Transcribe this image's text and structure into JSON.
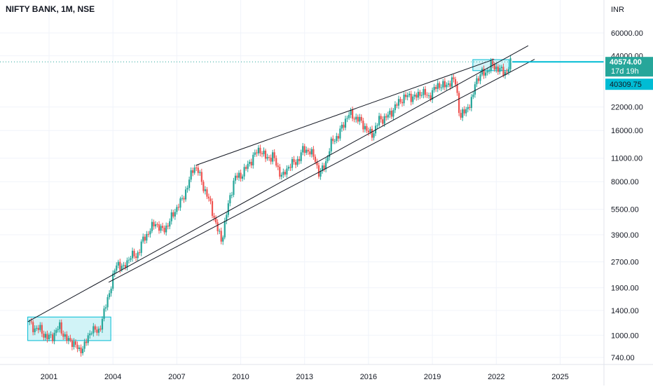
{
  "header": {
    "symbol_title": "NIFTY BANK, 1M, NSE",
    "currency": "INR"
  },
  "price_tags": {
    "last_price": "40574.00",
    "countdown": "17d 19h",
    "reference_price": "40309.75"
  },
  "colors": {
    "up_candle": "#26a69a",
    "down_candle": "#ef5350",
    "accent": "#00bcd4",
    "box_fill": "#b2ebf2",
    "trendline": "#131722",
    "grid": "#f0f3fa",
    "text": "#131722"
  },
  "chart_data": {
    "type": "candlestick",
    "x_axis_labels": [
      "2001",
      "2004",
      "2007",
      "2010",
      "2013",
      "2016",
      "2019",
      "2022",
      "2025"
    ],
    "y_axis_labels": [
      "60000.00",
      "44000.00",
      "22000.00",
      "16000.00",
      "11000.00",
      "8000.00",
      "5500.00",
      "3900.00",
      "2700.00",
      "1900.00",
      "1400.00",
      "1000.00",
      "740.00"
    ],
    "y_scale": "log",
    "ylim": [
      700,
      70000
    ],
    "xlim": [
      2000.0,
      2026.0
    ],
    "grid": true,
    "series": [
      {
        "values_key": "monthly_close_points",
        "points": [
          [
            2000.0,
            1200
          ],
          [
            2000.3,
            1100
          ],
          [
            2000.6,
            1080
          ],
          [
            2000.9,
            960
          ],
          [
            2001.2,
            1000
          ],
          [
            2001.5,
            1130
          ],
          [
            2001.8,
            940
          ],
          [
            2002.1,
            920
          ],
          [
            2002.4,
            810
          ],
          [
            2002.7,
            880
          ],
          [
            2003.0,
            1100
          ],
          [
            2003.3,
            1030
          ],
          [
            2003.6,
            1380
          ],
          [
            2003.9,
            1950
          ],
          [
            2004.2,
            2700
          ],
          [
            2004.5,
            2450
          ],
          [
            2004.8,
            2950
          ],
          [
            2005.1,
            2900
          ],
          [
            2005.4,
            3600
          ],
          [
            2005.7,
            4100
          ],
          [
            2006.0,
            4600
          ],
          [
            2006.3,
            4100
          ],
          [
            2006.6,
            4500
          ],
          [
            2006.9,
            5400
          ],
          [
            2007.2,
            6100
          ],
          [
            2007.5,
            7500
          ],
          [
            2007.8,
            10000
          ],
          [
            2008.0,
            9200
          ],
          [
            2008.3,
            7200
          ],
          [
            2008.6,
            5800
          ],
          [
            2008.9,
            4200
          ],
          [
            2009.1,
            3600
          ],
          [
            2009.4,
            5700
          ],
          [
            2009.7,
            8400
          ],
          [
            2010.0,
            8700
          ],
          [
            2010.3,
            9800
          ],
          [
            2010.6,
            11300
          ],
          [
            2010.9,
            12500
          ],
          [
            2011.2,
            10900
          ],
          [
            2011.5,
            11400
          ],
          [
            2011.8,
            9200
          ],
          [
            2012.0,
            8600
          ],
          [
            2012.3,
            10200
          ],
          [
            2012.6,
            10300
          ],
          [
            2012.9,
            12200
          ],
          [
            2013.2,
            12300
          ],
          [
            2013.5,
            10800
          ],
          [
            2013.7,
            8700
          ],
          [
            2014.0,
            10500
          ],
          [
            2014.3,
            14000
          ],
          [
            2014.6,
            15000
          ],
          [
            2014.9,
            18500
          ],
          [
            2015.1,
            20000
          ],
          [
            2015.4,
            19000
          ],
          [
            2015.7,
            17800
          ],
          [
            2016.0,
            15500
          ],
          [
            2016.2,
            15300
          ],
          [
            2016.5,
            18500
          ],
          [
            2016.8,
            19000
          ],
          [
            2017.0,
            20000
          ],
          [
            2017.3,
            22500
          ],
          [
            2017.6,
            24800
          ],
          [
            2017.9,
            25600
          ],
          [
            2018.2,
            25000
          ],
          [
            2018.5,
            27200
          ],
          [
            2018.8,
            25100
          ],
          [
            2019.0,
            27000
          ],
          [
            2019.3,
            30000
          ],
          [
            2019.6,
            29000
          ],
          [
            2019.9,
            31600
          ],
          [
            2020.1,
            30500
          ],
          [
            2020.3,
            19000
          ],
          [
            2020.6,
            21500
          ],
          [
            2020.9,
            24500
          ],
          [
            2021.0,
            31000
          ],
          [
            2021.3,
            34500
          ],
          [
            2021.5,
            35200
          ],
          [
            2021.8,
            39000
          ],
          [
            2022.0,
            37500
          ],
          [
            2022.3,
            35500
          ],
          [
            2022.5,
            35500
          ],
          [
            2022.7,
            40574
          ]
        ]
      }
    ],
    "annotations": [
      {
        "type": "trendline",
        "from": [
          2000.0,
          1200
        ],
        "to": [
          2023.5,
          50500
        ]
      },
      {
        "type": "trendline",
        "from": [
          2003.8,
          2050
        ],
        "to": [
          2023.8,
          42000
        ]
      },
      {
        "type": "trendline",
        "from": [
          2007.9,
          10000
        ],
        "to": [
          2021.9,
          42000
        ]
      },
      {
        "type": "box",
        "x": [
          2000.0,
          2003.9
        ],
        "y": [
          930,
          1280
        ]
      },
      {
        "type": "box",
        "x": [
          2020.9,
          2022.6
        ],
        "y": [
          36000,
          41800
        ]
      },
      {
        "type": "horizontal_line",
        "y": 40574,
        "style": "dotted"
      }
    ]
  }
}
